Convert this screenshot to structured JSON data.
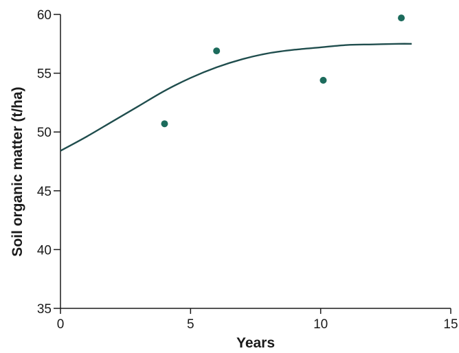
{
  "colors": {
    "axis": "#1a1a1a",
    "curve": "#1f4d4d",
    "points": "#1c6b5c",
    "background": "#ffffff"
  },
  "chart_data": {
    "type": "scatter",
    "xlabel": "Years",
    "ylabel": "Soil organic matter (t/ha)",
    "xlim": [
      0,
      15
    ],
    "ylim": [
      35,
      60
    ],
    "xticks": [
      0,
      5,
      10,
      15
    ],
    "yticks": [
      35,
      40,
      45,
      50,
      55,
      60
    ],
    "grid": false,
    "series": [
      {
        "type": "scatter",
        "points": [
          {
            "x": 4.0,
            "y": 50.7
          },
          {
            "x": 6.0,
            "y": 56.9
          },
          {
            "x": 10.1,
            "y": 54.4
          },
          {
            "x": 13.1,
            "y": 59.7
          }
        ]
      },
      {
        "type": "line",
        "points": [
          {
            "x": 0,
            "y": 48.4
          },
          {
            "x": 1,
            "y": 49.6
          },
          {
            "x": 2,
            "y": 50.9
          },
          {
            "x": 3,
            "y": 52.2
          },
          {
            "x": 4,
            "y": 53.5
          },
          {
            "x": 5,
            "y": 54.6
          },
          {
            "x": 6,
            "y": 55.5
          },
          {
            "x": 7,
            "y": 56.2
          },
          {
            "x": 8,
            "y": 56.7
          },
          {
            "x": 9,
            "y": 57.0
          },
          {
            "x": 10,
            "y": 57.2
          },
          {
            "x": 11,
            "y": 57.4
          },
          {
            "x": 12,
            "y": 57.45
          },
          {
            "x": 13,
            "y": 57.5
          },
          {
            "x": 13.5,
            "y": 57.5
          }
        ]
      }
    ]
  }
}
